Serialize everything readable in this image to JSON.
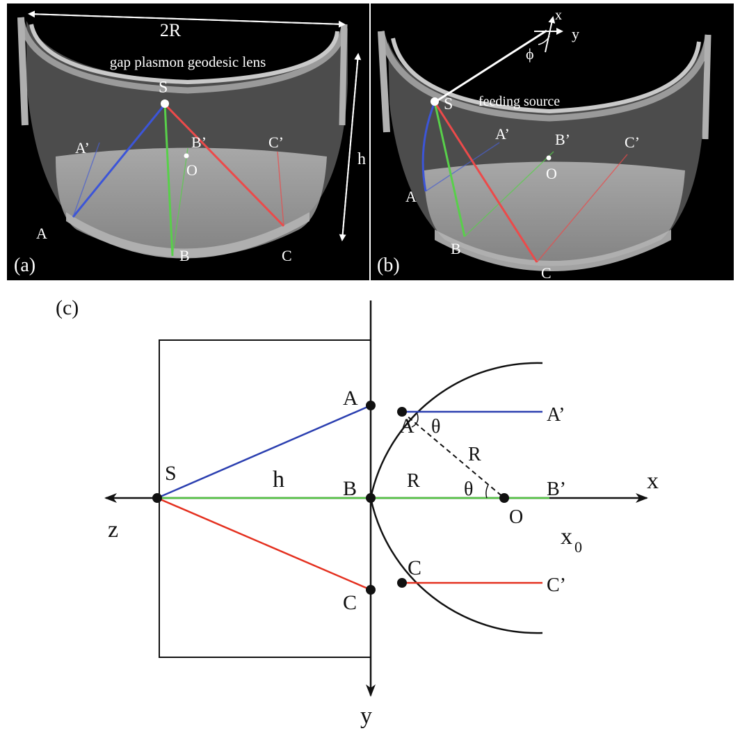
{
  "panel_a": {
    "panel_label": "(a)",
    "diameter_label": "2R",
    "title": "gap plasmon geodesic lens",
    "height_label": "h",
    "point_labels": {
      "S": "S",
      "A": "A",
      "B": "B",
      "C": "C",
      "A_prime": "A’",
      "B_prime": "B’",
      "C_prime": "C’",
      "O": "O"
    }
  },
  "panel_b": {
    "panel_label": "(b)",
    "source_label": "feeding source",
    "axis_x": "x",
    "axis_y": "y",
    "angle_label": "ϕ",
    "point_labels": {
      "S": "S",
      "A": "A",
      "B": "B",
      "C": "C",
      "A_prime": "A’",
      "B_prime": "B’",
      "C_prime": "C’",
      "O": "O"
    }
  },
  "panel_c": {
    "panel_label": "(c)",
    "axis_x": "x",
    "axis_y": "y",
    "axis_z": "z",
    "x0_label": "x",
    "x0_subscript": "0",
    "h_label": "h",
    "R_label": "R",
    "R_label_2": "R",
    "theta_label": "θ",
    "theta_label_2": "θ",
    "point_labels": {
      "S": "S",
      "A": "A",
      "B": "B",
      "C": "C",
      "A2": "A",
      "C2": "C",
      "A_prime": "A’",
      "B_prime": "B’",
      "C_prime": "C’",
      "O": "O"
    }
  },
  "colors": {
    "blue": "#2b3fb0",
    "green": "#52c342",
    "red": "#e4301f",
    "panel_bg": "#000000"
  }
}
